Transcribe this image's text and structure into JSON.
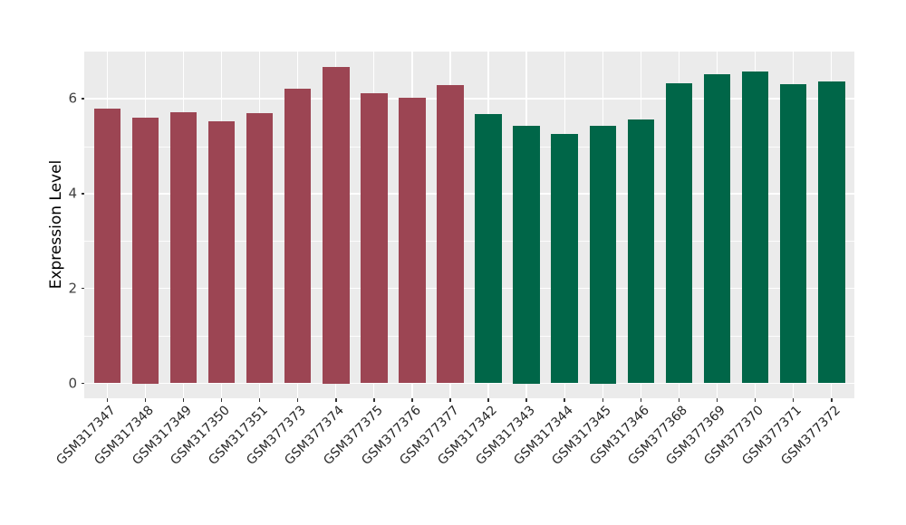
{
  "chart_data": {
    "type": "bar",
    "title": "",
    "xlabel": "",
    "ylabel": "Expression Level",
    "categories": [
      "GSM317347",
      "GSM317348",
      "GSM317349",
      "GSM317350",
      "GSM317351",
      "GSM377373",
      "GSM377374",
      "GSM377375",
      "GSM377376",
      "GSM377377",
      "GSM317342",
      "GSM317343",
      "GSM317344",
      "GSM317345",
      "GSM317346",
      "GSM377368",
      "GSM377369",
      "GSM377370",
      "GSM377371",
      "GSM377372"
    ],
    "values": [
      5.79,
      5.61,
      5.71,
      5.53,
      5.69,
      6.21,
      6.68,
      6.12,
      6.02,
      6.28,
      5.67,
      5.43,
      5.26,
      5.43,
      5.57,
      6.32,
      6.52,
      6.57,
      6.31,
      6.36
    ],
    "bar_colors": [
      "#9C4553",
      "#9C4553",
      "#9C4553",
      "#9C4553",
      "#9C4553",
      "#9C4553",
      "#9C4553",
      "#9C4553",
      "#9C4553",
      "#9C4553",
      "#006648",
      "#006648",
      "#006648",
      "#006648",
      "#006648",
      "#006648",
      "#006648",
      "#006648",
      "#006648",
      "#006648"
    ],
    "yticks": [
      0,
      2,
      4,
      6
    ],
    "yticks_minor": [
      1,
      3,
      5
    ],
    "ylim": [
      0,
      7.0
    ],
    "x_tick_angle": -45,
    "legend_position": "none",
    "grid": "on",
    "colors": {
      "panel_bg": "#EBEBEB",
      "grid": "#FFFFFF",
      "axis_text": "#404040",
      "bar_group_1": "#9C4553",
      "bar_group_2": "#006648"
    }
  }
}
